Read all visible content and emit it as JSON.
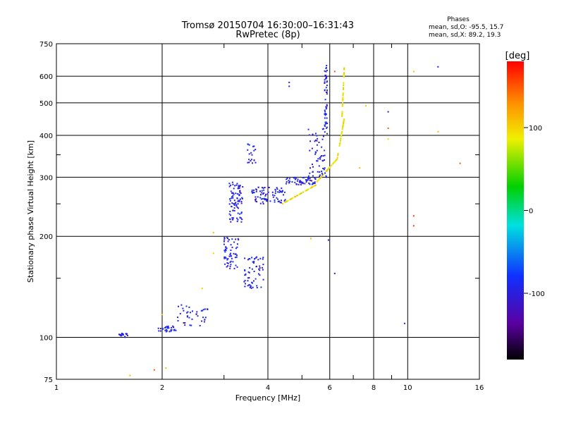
{
  "chart_data": {
    "type": "scatter",
    "title": "Tromsø 20150704 16:30:00–16:31:43",
    "subtitle": "RwPretec (8p)",
    "xlabel": "Frequency [MHz]",
    "ylabel": "Stationary phase Virtual Height [km]",
    "xscale": "log",
    "yscale": "log",
    "xlim": [
      1,
      16
    ],
    "ylim": [
      75,
      750
    ],
    "xticks": [
      1,
      2,
      4,
      6,
      8,
      10,
      16
    ],
    "yticks": [
      75,
      100,
      200,
      300,
      400,
      500,
      600,
      750
    ],
    "grid": true,
    "phase_stats": {
      "title": "Phases",
      "line_o": "mean, sd,O: -95.5, 15.7",
      "line_x": "mean, sd,X: 89.2, 19.3"
    },
    "colorbar": {
      "label": "[deg]",
      "range": [
        -180,
        180
      ],
      "ticks": [
        -100,
        0,
        100
      ],
      "colormap": "rainbow"
    },
    "colors": {
      "o_mode": "#1f3ff0",
      "x_mode": "#e8e800"
    },
    "series": [
      {
        "mode": "O",
        "phase_deg": -95.5,
        "segments": [
          {
            "f": [
              1.5,
              1.6
            ],
            "h": [
              100,
              103
            ],
            "n": 20
          },
          {
            "f": [
              1.95,
              2.2
            ],
            "h": [
              104,
              108
            ],
            "n": 30
          },
          {
            "f": [
              2.2,
              2.7
            ],
            "h": [
              108,
              125
            ],
            "n": 40
          },
          {
            "f": [
              3.0,
              3.3
            ],
            "h": [
              160,
              200
            ],
            "n": 60
          },
          {
            "f": [
              3.1,
              3.4
            ],
            "h": [
              220,
              290
            ],
            "n": 90
          },
          {
            "f": [
              3.4,
              3.9
            ],
            "h": [
              140,
              175
            ],
            "n": 60
          },
          {
            "f": [
              3.5,
              3.7
            ],
            "h": [
              330,
              380
            ],
            "n": 20
          },
          {
            "f": [
              3.6,
              4.5
            ],
            "h": [
              250,
              280
            ],
            "n": 80
          },
          {
            "f": [
              4.5,
              5.5
            ],
            "h": [
              285,
              300
            ],
            "n": 60
          },
          {
            "f": [
              5.2,
              5.9
            ],
            "h": [
              300,
              420
            ],
            "n": 60
          },
          {
            "f": [
              5.8,
              5.9
            ],
            "h": [
              420,
              650
            ],
            "n": 50
          }
        ]
      },
      {
        "mode": "X",
        "phase_deg": 89.2,
        "segments": [
          {
            "f": [
              4.4,
              5.5
            ],
            "h": [
              250,
              285
            ],
            "n": 50
          },
          {
            "f": [
              5.5,
              6.3
            ],
            "h": [
              290,
              340
            ],
            "n": 40
          },
          {
            "f": [
              6.3,
              6.6
            ],
            "h": [
              340,
              450
            ],
            "n": 40
          },
          {
            "f": [
              6.5,
              6.6
            ],
            "h": [
              450,
              640
            ],
            "n": 40
          }
        ]
      }
    ],
    "outliers": [
      {
        "f": 4.6,
        "h": 560,
        "phase": -100
      },
      {
        "f": 4.6,
        "h": 575,
        "phase": -100
      },
      {
        "f": 5.95,
        "h": 195,
        "phase": -120
      },
      {
        "f": 6.2,
        "h": 155,
        "phase": -100
      },
      {
        "f": 6.2,
        "h": 620,
        "phase": 150
      },
      {
        "f": 7.3,
        "h": 320,
        "phase": 110
      },
      {
        "f": 7.6,
        "h": 490,
        "phase": 100
      },
      {
        "f": 8.8,
        "h": 470,
        "phase": -100
      },
      {
        "f": 8.8,
        "h": 420,
        "phase": 150
      },
      {
        "f": 8.8,
        "h": 390,
        "phase": 100
      },
      {
        "f": 9.8,
        "h": 110,
        "phase": -100
      },
      {
        "f": 10.4,
        "h": 620,
        "phase": 110
      },
      {
        "f": 10.4,
        "h": 230,
        "phase": 160
      },
      {
        "f": 10.4,
        "h": 215,
        "phase": 160
      },
      {
        "f": 12.2,
        "h": 640,
        "phase": -100
      },
      {
        "f": 12.2,
        "h": 410,
        "phase": 110
      },
      {
        "f": 14.1,
        "h": 330,
        "phase": 150
      },
      {
        "f": 1.62,
        "h": 77,
        "phase": 110
      },
      {
        "f": 1.9,
        "h": 80,
        "phase": 150
      },
      {
        "f": 2.05,
        "h": 81,
        "phase": 110
      },
      {
        "f": 2.0,
        "h": 117,
        "phase": 110
      },
      {
        "f": 2.6,
        "h": 140,
        "phase": 100
      },
      {
        "f": 2.8,
        "h": 178,
        "phase": 100
      },
      {
        "f": 2.8,
        "h": 205,
        "phase": 110
      },
      {
        "f": 5.3,
        "h": 197,
        "phase": 110
      }
    ]
  }
}
